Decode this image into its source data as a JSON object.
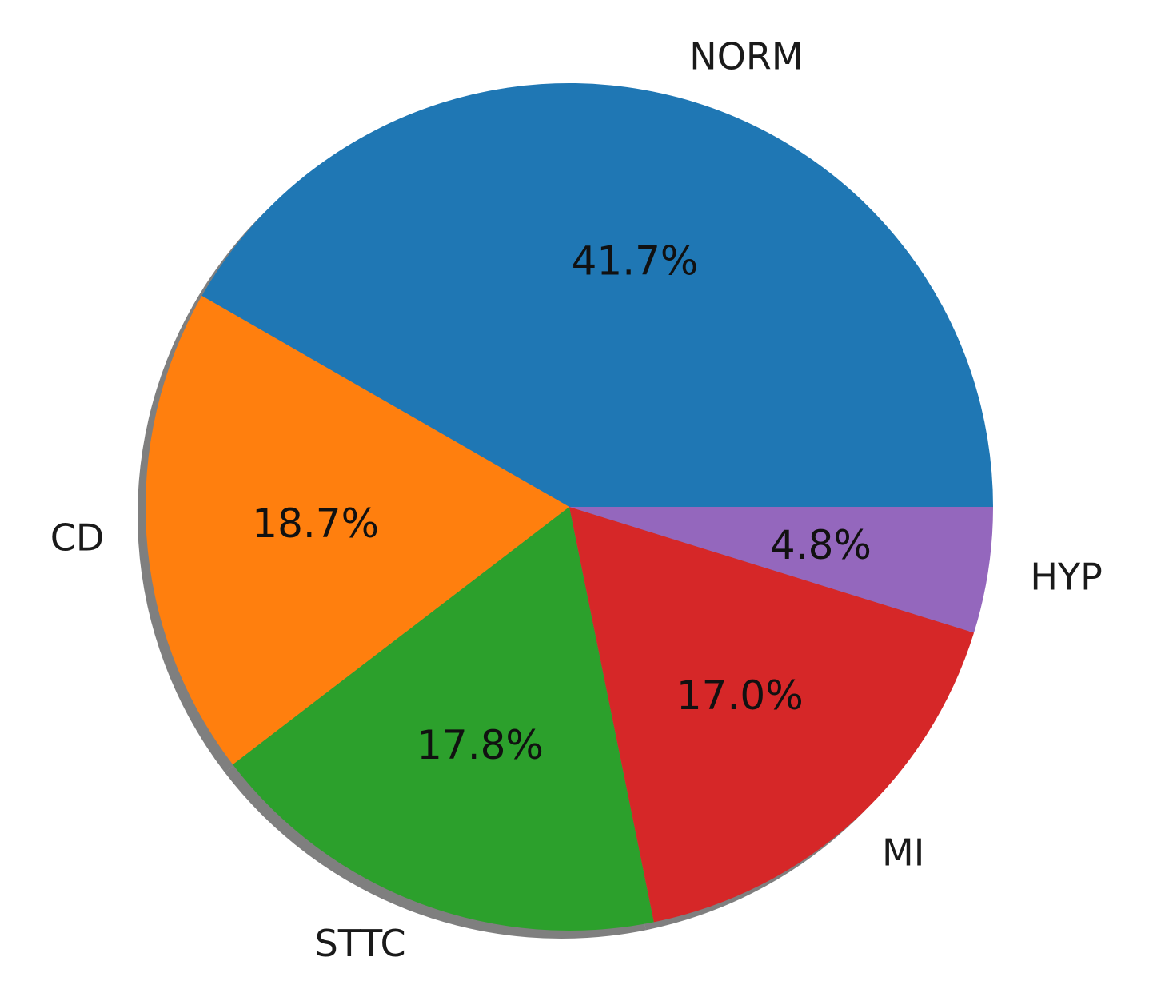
{
  "chart_data": {
    "type": "pie",
    "title": "",
    "labels": [
      "NORM",
      "CD",
      "STTC",
      "MI",
      "HYP"
    ],
    "values": [
      41.7,
      18.7,
      17.8,
      17.0,
      4.8
    ],
    "value_labels": [
      "41.7%",
      "18.7%",
      "17.8%",
      "17.0%",
      "4.8%"
    ],
    "colors": [
      "#1f77b4",
      "#ff7f0e",
      "#2ca02c",
      "#d62728",
      "#9467bd"
    ],
    "start_angle_deg": 0,
    "direction": "counterclockwise",
    "shadow": true,
    "legend": "none"
  }
}
